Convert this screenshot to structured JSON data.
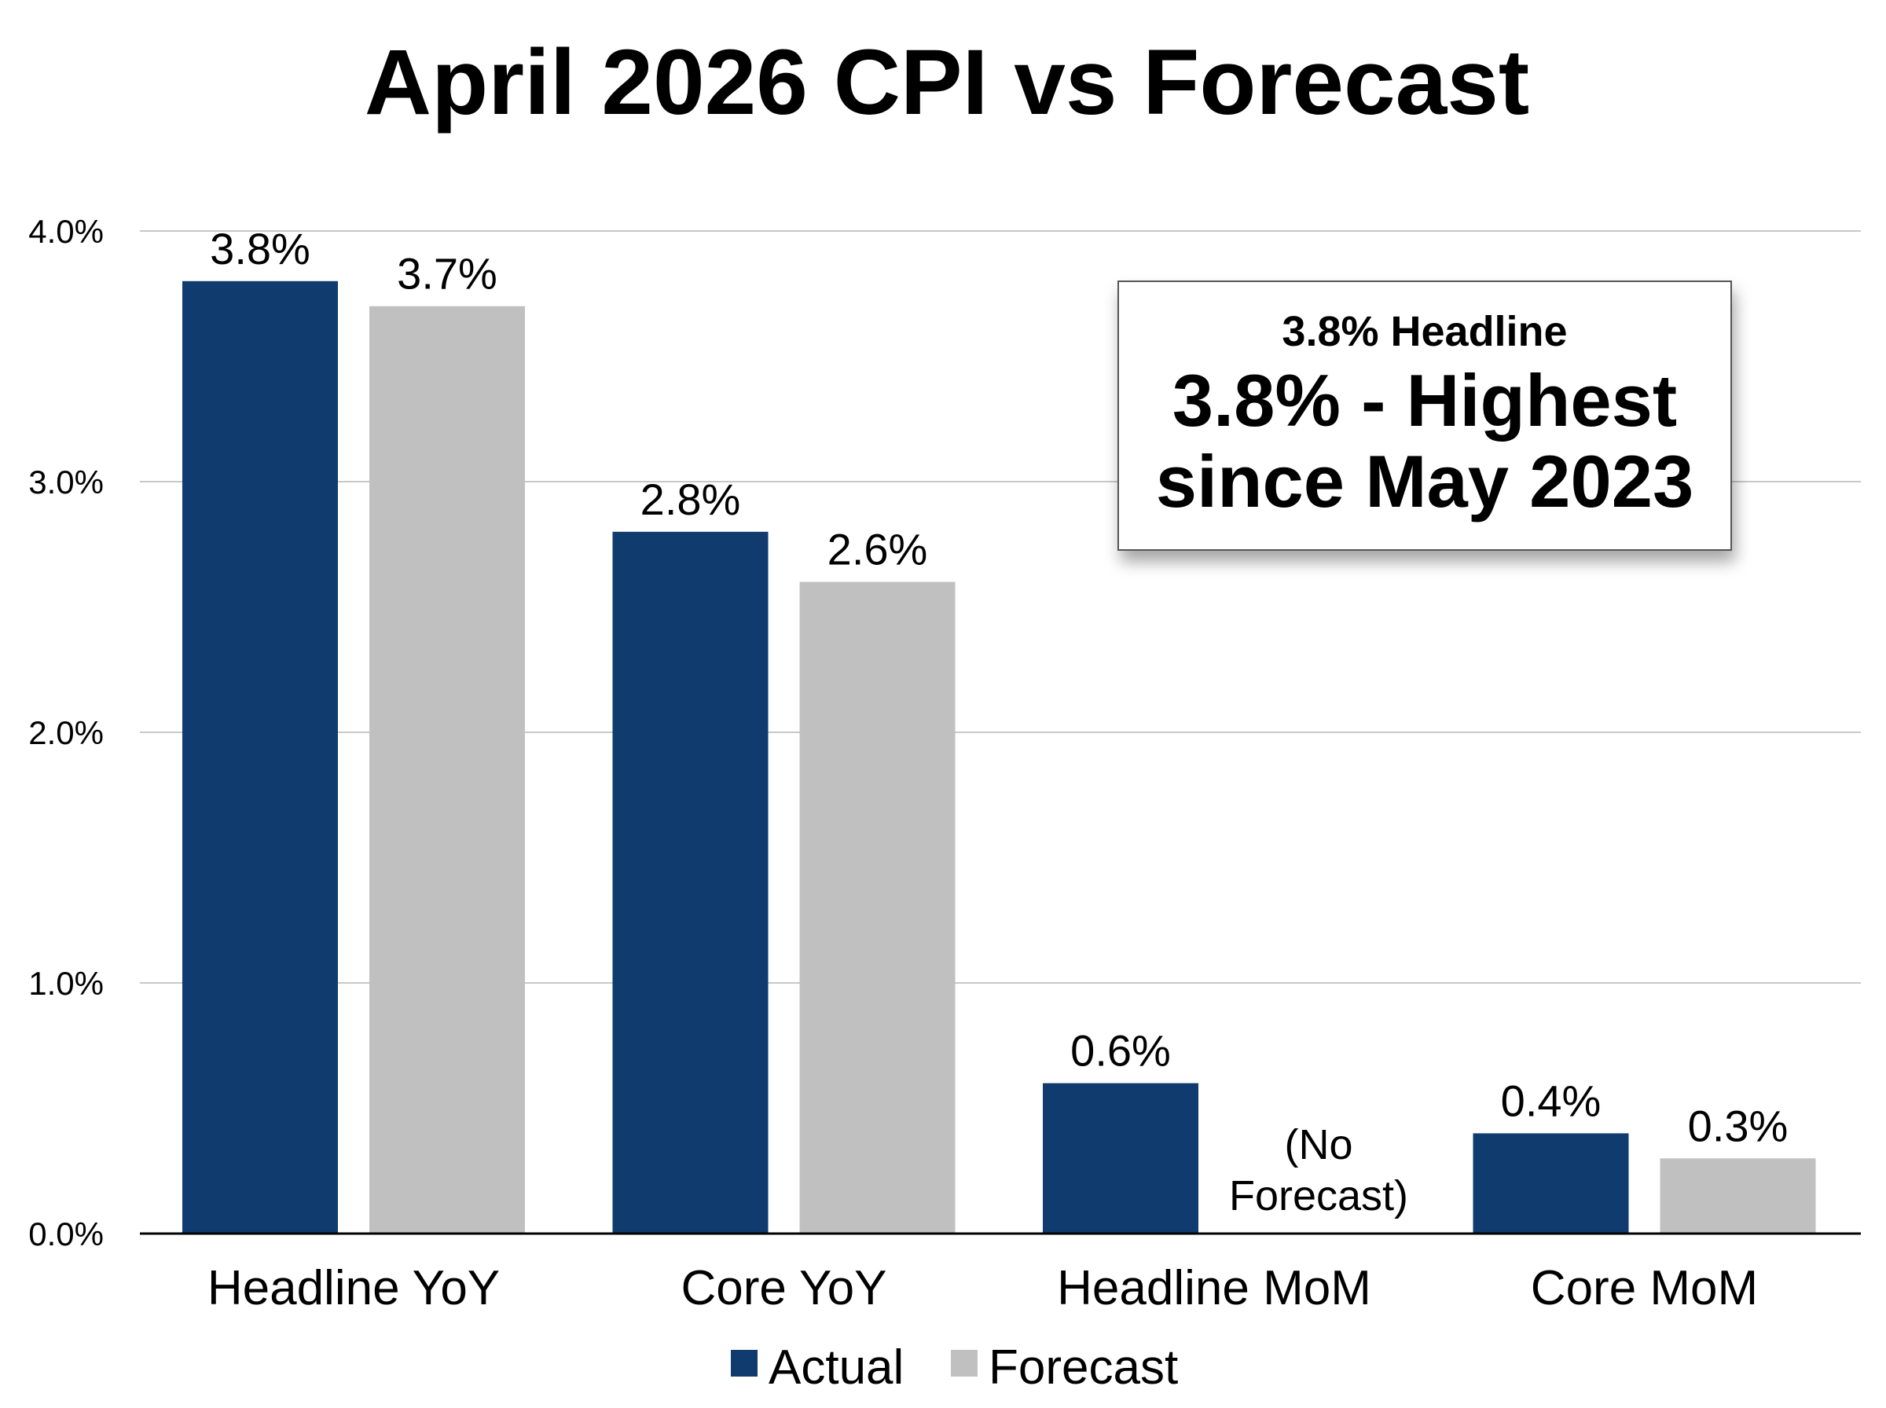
{
  "chart_data": {
    "type": "bar",
    "title": "April 2026 CPI vs Forecast",
    "categories": [
      "Headline YoY",
      "Core YoY",
      "Headline MoM",
      "Core MoM"
    ],
    "series": [
      {
        "name": "Actual",
        "color": "#0f3b6e",
        "values": [
          3.8,
          2.8,
          0.6,
          0.4
        ],
        "labels": [
          "3.8%",
          "2.8%",
          "0.6%",
          "0.4%"
        ]
      },
      {
        "name": "Forecast",
        "color": "#c0c0c0",
        "values": [
          3.7,
          2.6,
          null,
          0.3
        ],
        "labels": [
          "3.7%",
          "2.6%",
          "",
          "0.3%"
        ]
      }
    ],
    "ylim": [
      0,
      4.0
    ],
    "yticks": [
      0,
      1,
      2,
      3,
      4
    ],
    "ytick_labels": [
      "0.0%",
      "1.0%",
      "2.0%",
      "3.0%",
      "4.0%"
    ],
    "grid": true,
    "legend_position": "bottom-center",
    "missing_label": [
      "(No",
      "Forecast)"
    ],
    "annotation": {
      "line1": "3.8% Headline",
      "line2": "3.8%  - Highest",
      "line3": "since May 2023"
    }
  }
}
